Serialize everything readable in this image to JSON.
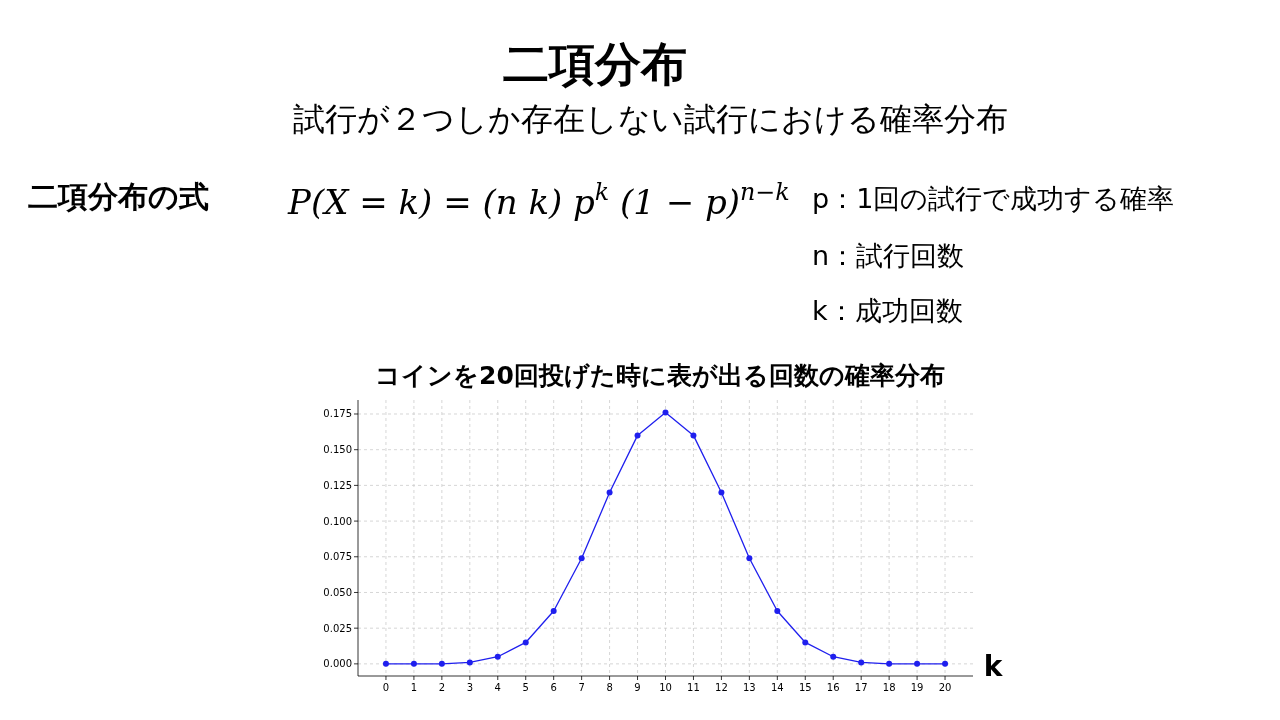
{
  "chart_data": {
    "type": "line",
    "title": "二項分布",
    "subtitle": "試行が２つしか存在しない試行における確率分布",
    "annotations": [
      "二項分布の式",
      "P(X = k) = (n k) p$^{k}$(1 − p)$^{n−k}$",
      "p：1回の試行で成功する確率",
      "n：試行回数",
      "k：成功回数",
      "コインを20回投げた時に表が出る回数の確率分布"
    ],
    "xlabel": "k",
    "x": [
      0,
      1,
      2,
      3,
      4,
      5,
      6,
      7,
      8,
      9,
      10,
      11,
      12,
      13,
      14,
      15,
      16,
      17,
      18,
      19,
      20
    ],
    "series": [
      {
        "color": "#1f1fee",
        "values": [
          0.0,
          0.0,
          0.0,
          0.001,
          0.005,
          0.015,
          0.037,
          0.074,
          0.12,
          0.16,
          0.176,
          0.16,
          0.12,
          0.074,
          0.037,
          0.015,
          0.005,
          0.001,
          0.0,
          0.0,
          0.0
        ]
      }
    ],
    "xlim": [
      -1,
      21
    ],
    "xticks": [
      0,
      1,
      2,
      3,
      4,
      5,
      6,
      7,
      8,
      9,
      10,
      11,
      12,
      13,
      14,
      15,
      16,
      17,
      18,
      19,
      20
    ],
    "ylim": [
      -0.0085,
      0.1848
    ],
    "yticks": [
      {
        "value": 0,
        "label": "0.000"
      },
      {
        "value": 0.025,
        "label": "0.025"
      },
      {
        "value": 0.05,
        "label": "0.050"
      },
      {
        "value": 0.075,
        "label": "0.075"
      },
      {
        "value": 0.1,
        "label": "0.100"
      },
      {
        "value": 0.125,
        "label": "0.125"
      },
      {
        "value": 0.15,
        "label": "0.150"
      },
      {
        "value": 0.175,
        "label": "0.175"
      }
    ],
    "grid": true,
    "marker": "circle",
    "line_style": "solid"
  }
}
